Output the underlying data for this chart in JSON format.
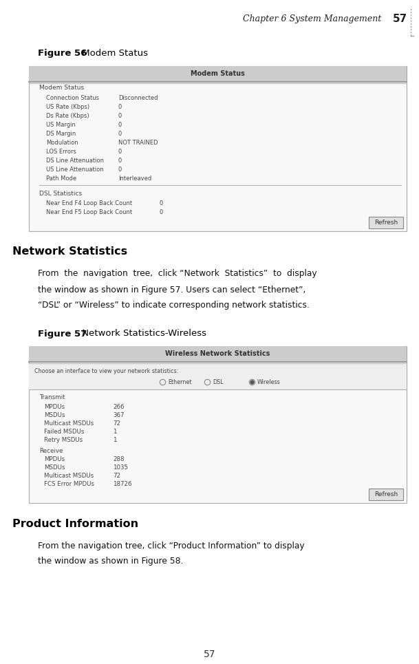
{
  "page_width": 6.09,
  "page_height": 9.65,
  "bg_color": "#ffffff",
  "header_text": "Chapter 6 System Management",
  "header_page": "57",
  "figure56_label_bold": "Figure 56",
  "figure56_label_normal": " Modem Status",
  "figure57_label_bold": "Figure 57",
  "figure57_label_normal": " Network Statistics-Wireless",
  "section_network": "Network Statistics",
  "section_product": "Product Information",
  "para1_lines": [
    "From  the  navigation  tree,  click “Network  Statistics”  to  display",
    "the window as shown in Figure 57. Users can select “Ethernet”,",
    "“DSL” or “Wireless” to indicate corresponding network statistics."
  ],
  "para2_lines": [
    "From the navigation tree, click “Product Information” to display",
    "the window as shown in Figure 58."
  ],
  "modem_title": "Modem Status",
  "modem_rows": [
    [
      "Modem Status",
      ""
    ],
    [
      "Connection Status",
      "Disconnected"
    ],
    [
      "US Rate (Kbps)",
      "0"
    ],
    [
      "Ds Rate (Kbps)",
      "0"
    ],
    [
      "US Margin",
      "0"
    ],
    [
      "DS Margin",
      "0"
    ],
    [
      "Modulation",
      "NOT TRAINED"
    ],
    [
      "LOS Errors",
      "0"
    ],
    [
      "DS Line Attenuation",
      "0"
    ],
    [
      "US Line Attenuation",
      "0"
    ],
    [
      "Path Mode",
      "Interleaved"
    ]
  ],
  "dsl_section": "DSL Statistics",
  "dsl_rows": [
    [
      "Near End F4 Loop Back Count",
      "0"
    ],
    [
      "Near End F5 Loop Back Count",
      "0"
    ]
  ],
  "wireless_title": "Wireless Network Statistics",
  "wireless_interface_label": "Choose an interface to view your network statistics:",
  "wireless_options": [
    "Ethernet",
    "DSL",
    "Wireless"
  ],
  "wireless_selected": 2,
  "transmit_label": "Transmit",
  "transmit_rows": [
    [
      "MPDUs",
      "266"
    ],
    [
      "MSDUs",
      "367"
    ],
    [
      "Multicast MSDUs",
      "72"
    ],
    [
      "Failed MSDUs",
      "1"
    ],
    [
      "Retry MSDUs",
      "1"
    ]
  ],
  "receive_label": "Receive",
  "receive_rows": [
    [
      "MPDUs",
      "288"
    ],
    [
      "MSDUs",
      "1035"
    ],
    [
      "Multicast MSDUs",
      "72"
    ],
    [
      "FCS Error MPDUs",
      "18726"
    ]
  ],
  "footer_page": "57",
  "refresh_btn": "Refresh"
}
